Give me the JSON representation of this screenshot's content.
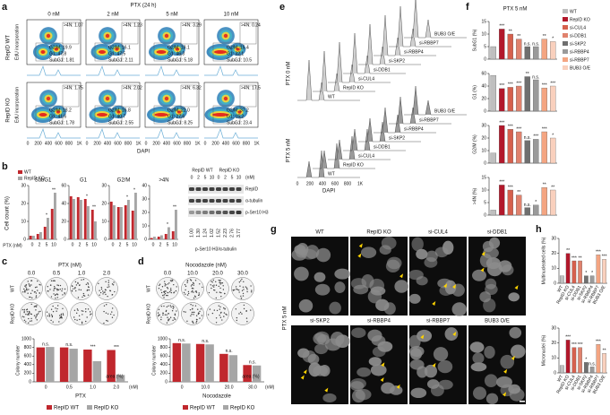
{
  "panels": {
    "a": {
      "label": "a",
      "title": "PTX (24 h)",
      "columns": [
        "0 nM",
        "2 nM",
        "5 nM",
        "10 nM"
      ],
      "rows": [
        "RepID WT",
        "RepID KO"
      ],
      "y_label": "EdU incorporation",
      "x_label": "DAPI",
      "xticks": [
        "0",
        "200",
        "400",
        "600",
        "800",
        "1K"
      ],
      "gates": [
        [
          [
            ">4N: 1.07",
            "G2/M: 19.9",
            "G1: 47.8",
            "SubG1: 1.81"
          ],
          [
            ">4N: 1.23",
            "G2/M: 16.1",
            "G1: 47.5",
            "SubG1: 2.11"
          ],
          [
            ">4N: 3.29",
            "G2/M: 18.1",
            "G1: 46.3",
            "SubG1: 5.18"
          ],
          [
            ">4N: 0.24",
            "G2/M: 15.4",
            "G1: 32.1",
            "SubG1: 10.5"
          ]
        ],
        [
          [
            ">4N: 1.75",
            "G2/M: 18.2",
            "G1: 41.6",
            "SubG1: 1.78"
          ],
          [
            ">4N: 2.02",
            "G2/M: 16.8",
            "G1: 40.7",
            "SubG1: 2.55"
          ],
          [
            ">4N: 6.32",
            "G2/M: 22.0",
            "G1: 27.6",
            "SubG1: 8.25"
          ],
          [
            ">4N: 17.5",
            "G2/M: 37.2",
            "G1: 15.2",
            "SubG1: 23.4"
          ]
        ]
      ]
    },
    "b": {
      "label": "b",
      "legend": [
        "WT",
        "RepID KO"
      ],
      "colors": [
        "#c0272d",
        "#a6a6a6"
      ],
      "x_label": "PTX (nM)",
      "y_label": "Cell count (%)",
      "categories": [
        "0",
        "2",
        "5",
        "10"
      ],
      "charts": [
        {
          "title": "SubG1",
          "ylim": [
            0,
            30
          ],
          "yticks": [
            0,
            10,
            20,
            30
          ],
          "significance": [
            null,
            null,
            "*",
            "**"
          ],
          "series": [
            {
              "values": [
                2,
                3,
                7,
                17
              ]
            },
            {
              "values": [
                2,
                4,
                12,
                26
              ]
            }
          ]
        },
        {
          "title": "G1",
          "ylim": [
            0,
            60
          ],
          "yticks": [
            0,
            20,
            40,
            60
          ],
          "significance": [
            null,
            null,
            "*",
            "**"
          ],
          "series": [
            {
              "values": [
                48,
                47,
                45,
                33
              ]
            },
            {
              "values": [
                45,
                44,
                37,
                20
              ]
            }
          ]
        },
        {
          "title": "G2/M",
          "ylim": [
            0,
            30
          ],
          "yticks": [
            0,
            10,
            20,
            30
          ],
          "significance": [
            null,
            null,
            "*",
            "*"
          ],
          "series": [
            {
              "values": [
                21,
                18,
                19,
                16
              ]
            },
            {
              "values": [
                19,
                18,
                22,
                26
              ]
            }
          ]
        },
        {
          "title": ">4N",
          "ylim": [
            0,
            40
          ],
          "yticks": [
            0,
            10,
            20,
            30,
            40
          ],
          "significance": [
            null,
            null,
            "*",
            "**"
          ],
          "series": [
            {
              "values": [
                1,
                2,
                4,
                6
              ]
            },
            {
              "values": [
                2,
                3,
                9,
                22
              ]
            }
          ]
        }
      ],
      "blot": {
        "groups": [
          "RepID WT",
          "RepID KO"
        ],
        "lanes": [
          "0",
          "2",
          "5",
          "10",
          "0",
          "2",
          "5",
          "10"
        ],
        "unit": "(nM)",
        "rows": [
          "RepID",
          "α-tubulin",
          "p-Ser10 H3"
        ],
        "ratio_label": "p-Ser10 H3/α-tubulin",
        "ratios": [
          "1.00",
          "1.30",
          "1.24",
          "1.02",
          "1.52",
          "2.23",
          "2.76",
          "3.77"
        ]
      }
    },
    "c": {
      "label": "c",
      "title": "PTX (nM)",
      "doses": [
        "0.0",
        "0.5",
        "1.0",
        "2.0"
      ],
      "rows": [
        "WT",
        "RepID KO"
      ],
      "legend": [
        "RepID WT",
        "RepID KO"
      ],
      "colors": [
        "#c0272d",
        "#a6a6a6"
      ],
      "chart": {
        "y_label": "Colony number",
        "ylim": [
          0,
          1000
        ],
        "yticks": [
          0,
          200,
          400,
          600,
          800,
          1000
        ],
        "categories": [
          "0",
          "0.5",
          "1.0",
          "2.0"
        ],
        "unit": "(nM)",
        "x_label": "PTX",
        "area_label": "area (%)",
        "significance": [
          "n.s.",
          "n.s.",
          "***",
          "***"
        ],
        "series": [
          {
            "values": [
              800,
              800,
              750,
              740
            ]
          },
          {
            "values": [
              810,
              770,
              480,
              160
            ]
          }
        ]
      }
    },
    "d": {
      "label": "d",
      "title": "Nocodazole (nM)",
      "doses": [
        "0.0",
        "10.0",
        "20.0",
        "30.0"
      ],
      "rows": [
        "WT",
        "RepID KO"
      ],
      "legend": [
        "RepID WT",
        "RepID KO"
      ],
      "colors": [
        "#c0272d",
        "#a6a6a6"
      ],
      "chart": {
        "y_label": "Colony number",
        "ylim": [
          0,
          1000
        ],
        "yticks": [
          0,
          200,
          400,
          600,
          800,
          1000
        ],
        "categories": [
          "0",
          "10.0",
          "20.0",
          "30.0"
        ],
        "unit": "(nM)",
        "x_label": "Nocodazole",
        "area_label": "area (%)",
        "significance": [
          "n.s.",
          "n.s.",
          "n.s.",
          "n.s."
        ],
        "series": [
          {
            "values": [
              900,
              880,
              650,
              390
            ]
          },
          {
            "values": [
              890,
              870,
              620,
              380
            ]
          }
        ]
      }
    },
    "e": {
      "label": "e",
      "conditions": [
        "PTX 0 nM",
        "PTX 5 nM"
      ],
      "traces": [
        "WT",
        "RepID KO",
        "si-CUL4",
        "si-DDB1",
        "si-SKP2",
        "si-RBBP4",
        "si-RBBP7",
        "BUB3 O/E"
      ],
      "xticks": [
        "0",
        "200",
        "400",
        "600",
        "800",
        "1K"
      ],
      "x_label": "DAPI"
    },
    "f": {
      "label": "f",
      "title": "PTX 5 nM",
      "legend": [
        "WT",
        "RepID KO",
        "si-CUL4",
        "si-DDB1",
        "si-SKP2",
        "si-RBBP4",
        "si-RBBP7",
        "BUB3 O/E"
      ],
      "colors": [
        "#bfbfbf",
        "#b2182b",
        "#d6604d",
        "#e0826d",
        "#6f6f6f",
        "#9a9a9a",
        "#f4a582",
        "#f9d0bd"
      ],
      "charts": [
        {
          "y_label": "SubG1 (%)",
          "ylim": [
            0,
            15
          ],
          "yticks": [
            0,
            5,
            10,
            15
          ],
          "values": [
            5,
            12,
            10,
            8,
            5,
            5,
            8,
            7
          ],
          "significance": [
            null,
            "***",
            "**",
            "**",
            "n.s.",
            "n.s.",
            "**",
            "*"
          ]
        },
        {
          "y_label": "G1 (%)",
          "ylim": [
            0,
            60
          ],
          "yticks": [
            0,
            20,
            40,
            60
          ],
          "values": [
            57,
            36,
            38,
            40,
            55,
            50,
            37,
            40
          ],
          "significance": [
            null,
            "***",
            "***",
            "***",
            "**",
            "n.s.",
            "***",
            "***"
          ]
        },
        {
          "y_label": "G2/M (%)",
          "ylim": [
            0,
            30
          ],
          "yticks": [
            0,
            10,
            20,
            30
          ],
          "values": [
            8,
            30,
            27,
            25,
            18,
            19,
            25,
            20
          ],
          "significance": [
            null,
            "***",
            "***",
            "***",
            "n.s.",
            "***",
            "***",
            "*"
          ]
        },
        {
          "y_label": ">4N (%)",
          "ylim": [
            0,
            15
          ],
          "yticks": [
            0,
            5,
            10,
            15
          ],
          "values": [
            2,
            12,
            10,
            8,
            3,
            4,
            11,
            10
          ],
          "significance": [
            null,
            "***",
            "***",
            "**",
            "n.s.",
            "*",
            "**",
            "**"
          ]
        }
      ]
    },
    "g": {
      "label": "g",
      "condition": "PTX 5 nM",
      "images": [
        "WT",
        "RepID KO",
        "si-CUL4",
        "si-DDB1",
        "si-SKP2",
        "si-RBBP4",
        "si-RBBP7",
        "BUB3 O/E"
      ]
    },
    "h": {
      "label": "h",
      "categories": [
        "WT",
        "RepID KO",
        "si-CUL4",
        "si-DDB1",
        "si-SKP2",
        "si-RBBP4",
        "si-RBBP7",
        "BUB3 O/E"
      ],
      "colors": [
        "#bfbfbf",
        "#b2182b",
        "#d6604d",
        "#e0826d",
        "#6f6f6f",
        "#9a9a9a",
        "#f4a582",
        "#f9d0bd"
      ],
      "charts": [
        {
          "y_label": "Multinucleated cells (%)",
          "ylim": [
            0,
            30
          ],
          "yticks": [
            0,
            10,
            20,
            30
          ],
          "values": [
            5,
            20,
            15,
            15,
            5,
            5,
            19,
            16
          ],
          "significance": [
            null,
            "**",
            "***",
            "**",
            "*",
            "*",
            "***",
            "***"
          ]
        },
        {
          "y_label": "Micronuclei (%)",
          "ylim": [
            0,
            30
          ],
          "yticks": [
            0,
            10,
            20,
            30
          ],
          "values": [
            5,
            22,
            17,
            17,
            7,
            4,
            19,
            13
          ],
          "significance": [
            null,
            "***",
            "***",
            "***",
            "*",
            "n.s.",
            "***",
            "**"
          ]
        }
      ]
    }
  }
}
